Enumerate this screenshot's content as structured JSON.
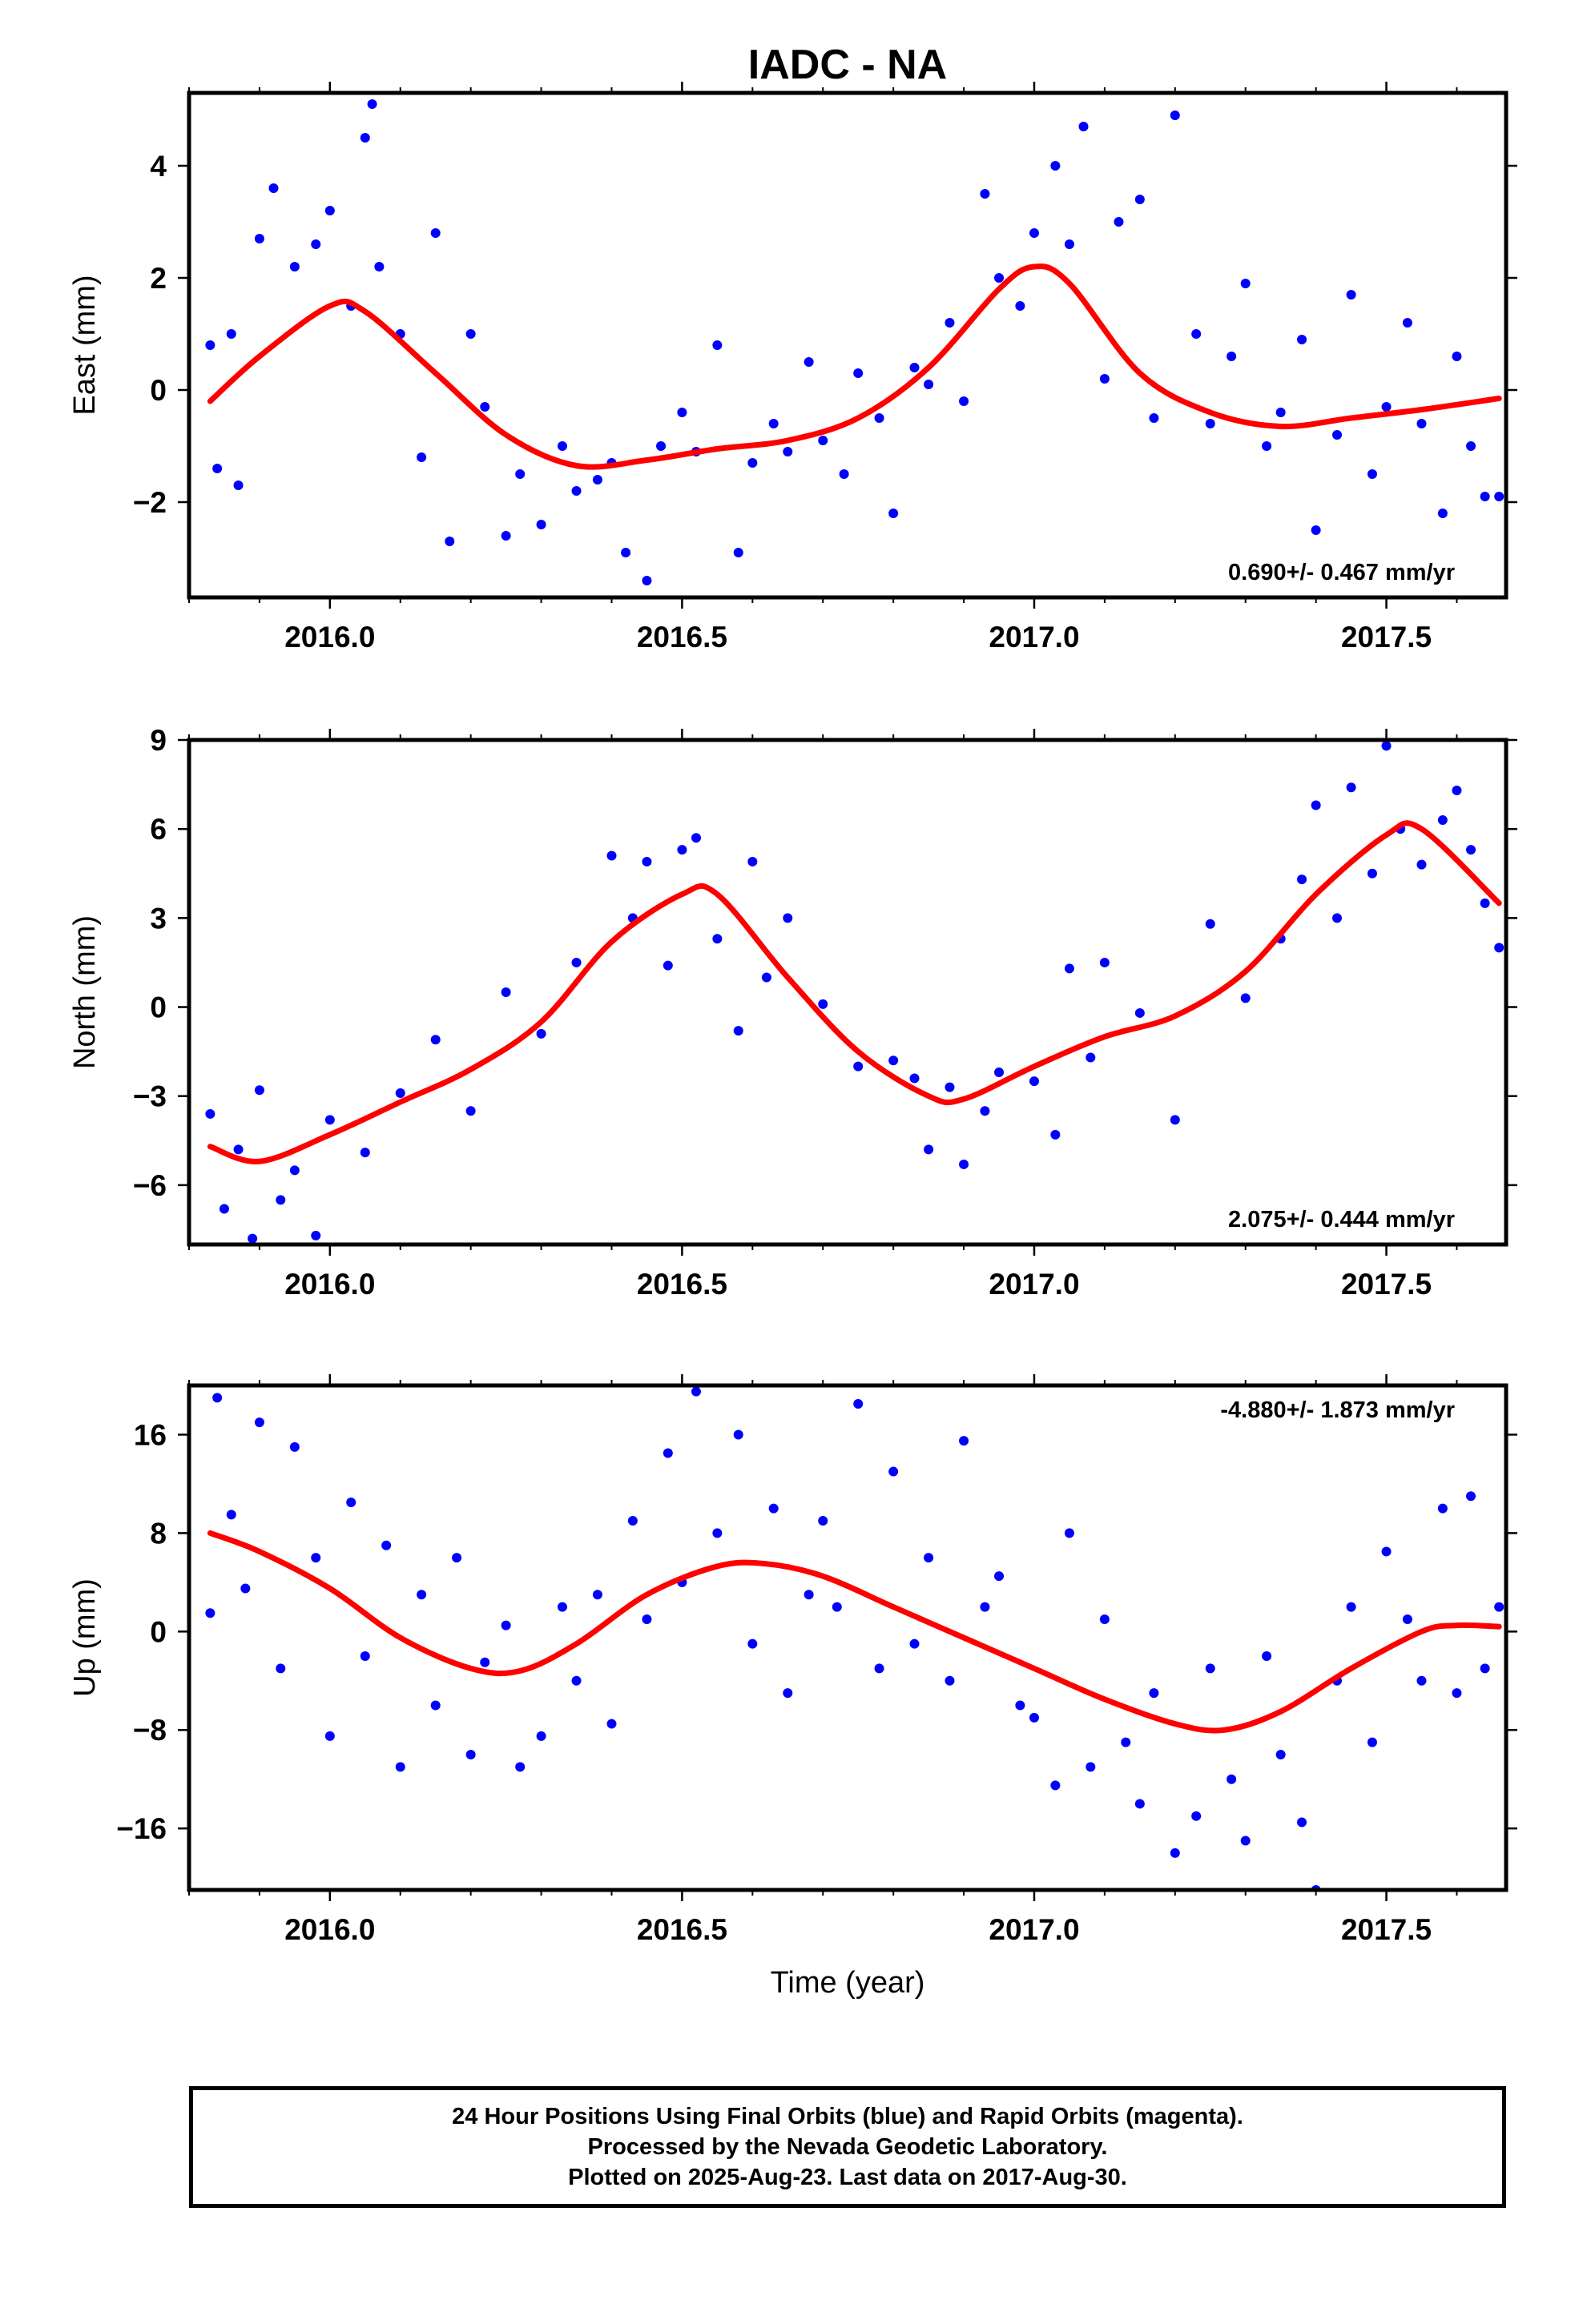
{
  "title": "IADC - NA",
  "xlabel": "Time (year)",
  "footer": {
    "line1": "24 Hour Positions Using Final Orbits (blue) and Rapid Orbits (magenta).",
    "line2": "Processed by the Nevada Geodetic Laboratory.",
    "line3": "Plotted on 2025-Aug-23. Last data on 2017-Aug-30."
  },
  "colors": {
    "final_orbits": "#0000ff",
    "fit": "#ff0000",
    "frame": "#000000"
  },
  "chart_data": [
    {
      "type": "scatter",
      "ylabel": "East (mm)",
      "rate_label": "0.690+/- 0.467 mm/yr",
      "rate_position": "bottom-right",
      "xlim": [
        2015.8,
        2017.67
      ],
      "ylim": [
        -3.7,
        5.3
      ],
      "xticks": [
        "2016.0",
        "2016.5",
        "2017.0",
        "2017.5"
      ],
      "yticks": [
        "−2",
        "0",
        "2",
        "4"
      ],
      "ytick_values": [
        -2,
        0,
        2,
        4
      ],
      "fit": {
        "x": [
          2015.83,
          2015.9,
          2016.0,
          2016.05,
          2016.15,
          2016.25,
          2016.35,
          2016.45,
          2016.55,
          2016.65,
          2016.75,
          2016.85,
          2016.95,
          2017.0,
          2017.05,
          2017.15,
          2017.25,
          2017.35,
          2017.45,
          2017.55,
          2017.66
        ],
        "y": [
          -0.2,
          0.6,
          1.5,
          1.4,
          0.3,
          -0.8,
          -1.35,
          -1.25,
          -1.05,
          -0.9,
          -0.5,
          0.4,
          1.8,
          2.2,
          1.9,
          0.3,
          -0.4,
          -0.65,
          -0.5,
          -0.35,
          -0.15
        ]
      },
      "points": {
        "x": [
          2015.83,
          2015.84,
          2015.86,
          2015.87,
          2015.9,
          2015.92,
          2015.95,
          2015.98,
          2016.0,
          2016.03,
          2016.05,
          2016.06,
          2016.07,
          2016.1,
          2016.13,
          2016.15,
          2016.17,
          2016.2,
          2016.22,
          2016.25,
          2016.27,
          2016.3,
          2016.33,
          2016.35,
          2016.38,
          2016.4,
          2016.42,
          2016.45,
          2016.47,
          2016.5,
          2016.52,
          2016.55,
          2016.58,
          2016.6,
          2016.63,
          2016.65,
          2016.68,
          2016.7,
          2016.73,
          2016.75,
          2016.78,
          2016.8,
          2016.83,
          2016.85,
          2016.88,
          2016.9,
          2016.93,
          2016.95,
          2016.98,
          2017.0,
          2017.03,
          2017.05,
          2017.07,
          2017.1,
          2017.12,
          2017.15,
          2017.17,
          2017.2,
          2017.23,
          2017.25,
          2017.28,
          2017.3,
          2017.33,
          2017.35,
          2017.38,
          2017.4,
          2017.43,
          2017.45,
          2017.48,
          2017.5,
          2017.53,
          2017.55,
          2017.58,
          2017.6,
          2017.62,
          2017.64,
          2017.66
        ],
        "y": [
          0.8,
          -1.4,
          1.0,
          -1.7,
          2.7,
          3.6,
          2.2,
          2.6,
          3.2,
          1.5,
          4.5,
          5.1,
          2.2,
          1.0,
          -1.2,
          2.8,
          -2.7,
          1.0,
          -0.3,
          -2.6,
          -1.5,
          -2.4,
          -1.0,
          -1.8,
          -1.6,
          -1.3,
          -2.9,
          -3.4,
          -1.0,
          -0.4,
          -1.1,
          0.8,
          -2.9,
          -1.3,
          -0.6,
          -1.1,
          0.5,
          -0.9,
          -1.5,
          0.3,
          -0.5,
          -2.2,
          0.4,
          0.1,
          1.2,
          -0.2,
          3.5,
          2.0,
          1.5,
          2.8,
          4.0,
          2.6,
          4.7,
          0.2,
          3.0,
          3.4,
          -0.5,
          4.9,
          1.0,
          -0.6,
          0.6,
          1.9,
          -1.0,
          -0.4,
          0.9,
          -2.5,
          -0.8,
          1.7,
          -1.5,
          -0.3,
          1.2,
          -0.6,
          -2.2,
          0.6,
          -1.0,
          -1.9,
          -1.9
        ]
      }
    },
    {
      "type": "scatter",
      "ylabel": "North (mm)",
      "rate_label": "2.075+/- 0.444 mm/yr",
      "rate_position": "bottom-right",
      "xlim": [
        2015.8,
        2017.67
      ],
      "ylim": [
        -8,
        9
      ],
      "xticks": [
        "2016.0",
        "2016.5",
        "2017.0",
        "2017.5"
      ],
      "yticks": [
        "−6",
        "−3",
        "0",
        "3",
        "6",
        "9"
      ],
      "ytick_values": [
        -6,
        -3,
        0,
        3,
        6,
        9
      ],
      "fit": {
        "x": [
          2015.83,
          2015.9,
          2016.0,
          2016.1,
          2016.2,
          2016.3,
          2016.4,
          2016.5,
          2016.55,
          2016.65,
          2016.75,
          2016.85,
          2016.9,
          2017.0,
          2017.1,
          2017.2,
          2017.3,
          2017.4,
          2017.5,
          2017.55,
          2017.66
        ],
        "y": [
          -4.7,
          -5.2,
          -4.3,
          -3.2,
          -2.1,
          -0.5,
          2.2,
          3.8,
          3.8,
          1.0,
          -1.5,
          -3.0,
          -3.1,
          -2.0,
          -1.0,
          -0.3,
          1.2,
          3.8,
          5.8,
          6.0,
          3.5
        ]
      },
      "points": {
        "x": [
          2015.83,
          2015.85,
          2015.87,
          2015.89,
          2015.9,
          2015.93,
          2015.95,
          2015.98,
          2016.0,
          2016.05,
          2016.1,
          2016.15,
          2016.2,
          2016.25,
          2016.3,
          2016.35,
          2016.4,
          2016.43,
          2016.45,
          2016.48,
          2016.5,
          2016.52,
          2016.55,
          2016.58,
          2016.6,
          2016.62,
          2016.65,
          2016.7,
          2016.75,
          2016.8,
          2016.83,
          2016.85,
          2016.88,
          2016.9,
          2016.93,
          2016.95,
          2017.0,
          2017.03,
          2017.05,
          2017.08,
          2017.1,
          2017.15,
          2017.2,
          2017.25,
          2017.3,
          2017.35,
          2017.38,
          2017.4,
          2017.43,
          2017.45,
          2017.48,
          2017.5,
          2017.52,
          2017.55,
          2017.58,
          2017.6,
          2017.62,
          2017.64,
          2017.66
        ],
        "y": [
          -3.6,
          -6.8,
          -4.8,
          -7.8,
          -2.8,
          -6.5,
          -5.5,
          -7.7,
          -3.8,
          -4.9,
          -2.9,
          -1.1,
          -3.5,
          0.5,
          -0.9,
          1.5,
          5.1,
          3.0,
          4.9,
          1.4,
          5.3,
          5.7,
          2.3,
          -0.8,
          4.9,
          1.0,
          3.0,
          0.1,
          -2.0,
          -1.8,
          -2.4,
          -4.8,
          -2.7,
          -5.3,
          -3.5,
          -2.2,
          -2.5,
          -4.3,
          1.3,
          -1.7,
          1.5,
          -0.2,
          -3.8,
          2.8,
          0.3,
          2.3,
          4.3,
          6.8,
          3.0,
          7.4,
          4.5,
          8.8,
          6.0,
          4.8,
          6.3,
          7.3,
          5.3,
          3.5,
          2.0
        ]
      }
    },
    {
      "type": "scatter",
      "ylabel": "Up (mm)",
      "rate_label": "-4.880+/- 1.873 mm/yr",
      "rate_position": "top-right",
      "xlim": [
        2015.8,
        2017.67
      ],
      "ylim": [
        -21,
        20
      ],
      "xticks": [
        "2016.0",
        "2016.5",
        "2017.0",
        "2017.5"
      ],
      "yticks": [
        "−16",
        "−8",
        "0",
        "8",
        "16"
      ],
      "ytick_values": [
        -16,
        -8,
        0,
        8,
        16
      ],
      "fit": {
        "x": [
          2015.83,
          2015.9,
          2016.0,
          2016.1,
          2016.2,
          2016.27,
          2016.35,
          2016.45,
          2016.55,
          2016.62,
          2016.7,
          2016.8,
          2016.9,
          2017.0,
          2017.1,
          2017.2,
          2017.27,
          2017.35,
          2017.45,
          2017.55,
          2017.6,
          2017.66
        ],
        "y": [
          8.0,
          6.5,
          3.5,
          -0.5,
          -3.0,
          -3.2,
          -1.0,
          3.0,
          5.3,
          5.5,
          4.5,
          2.0,
          -0.5,
          -3.0,
          -5.5,
          -7.5,
          -8.0,
          -6.5,
          -3.0,
          0.0,
          0.5,
          0.4
        ]
      },
      "points": {
        "x": [
          2015.83,
          2015.84,
          2015.86,
          2015.88,
          2015.9,
          2015.93,
          2015.95,
          2015.98,
          2016.0,
          2016.03,
          2016.05,
          2016.08,
          2016.1,
          2016.13,
          2016.15,
          2016.18,
          2016.2,
          2016.22,
          2016.25,
          2016.27,
          2016.3,
          2016.33,
          2016.35,
          2016.38,
          2016.4,
          2016.43,
          2016.45,
          2016.48,
          2016.5,
          2016.52,
          2016.55,
          2016.58,
          2016.6,
          2016.63,
          2016.65,
          2016.68,
          2016.7,
          2016.72,
          2016.75,
          2016.78,
          2016.8,
          2016.83,
          2016.85,
          2016.88,
          2016.9,
          2016.93,
          2016.95,
          2016.98,
          2017.0,
          2017.03,
          2017.05,
          2017.08,
          2017.1,
          2017.13,
          2017.15,
          2017.17,
          2017.2,
          2017.23,
          2017.25,
          2017.28,
          2017.3,
          2017.33,
          2017.35,
          2017.38,
          2017.4,
          2017.43,
          2017.45,
          2017.48,
          2017.5,
          2017.53,
          2017.55,
          2017.58,
          2017.6,
          2017.62,
          2017.64,
          2017.66
        ],
        "y": [
          1.5,
          19.0,
          9.5,
          3.5,
          17.0,
          -3.0,
          15.0,
          6.0,
          -8.5,
          10.5,
          -2.0,
          7.0,
          -11.0,
          3.0,
          -6.0,
          6.0,
          -10.0,
          -2.5,
          0.5,
          -11.0,
          -8.5,
          2.0,
          -4.0,
          3.0,
          -7.5,
          9.0,
          1.0,
          14.5,
          4.0,
          19.5,
          8.0,
          16.0,
          -1.0,
          10.0,
          -5.0,
          3.0,
          9.0,
          2.0,
          18.5,
          -3.0,
          13.0,
          -1.0,
          6.0,
          -4.0,
          15.5,
          2.0,
          4.5,
          -6.0,
          -7.0,
          -12.5,
          8.0,
          -11.0,
          1.0,
          -9.0,
          -14.0,
          -5.0,
          -18.0,
          -15.0,
          -3.0,
          -12.0,
          -17.0,
          -2.0,
          -10.0,
          -15.5,
          -21.0,
          -4.0,
          2.0,
          -9.0,
          6.5,
          1.0,
          -4.0,
          10.0,
          -5.0,
          11.0,
          -3.0,
          2.0
        ]
      }
    }
  ]
}
